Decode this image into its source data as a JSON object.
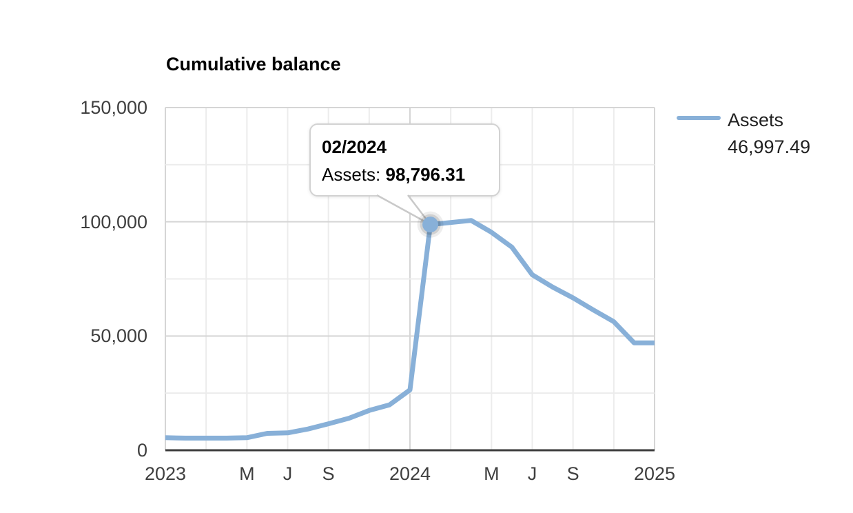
{
  "page": {
    "background": "#ffffff"
  },
  "chart_data": {
    "type": "line",
    "title": "Cumulative balance",
    "xlabel": "",
    "ylabel": "",
    "ylim": [
      0,
      150000
    ],
    "y_minor_step": 25000,
    "x_minor_step_months": 2,
    "x_range_months": 24,
    "grid": true,
    "legend_position": "right",
    "y_ticks": [
      {
        "value": 0,
        "label": "0"
      },
      {
        "value": 50000,
        "label": "50,000"
      },
      {
        "value": 100000,
        "label": "100,000"
      },
      {
        "value": 150000,
        "label": "150,000"
      }
    ],
    "x_ticks": [
      {
        "month_index": 0,
        "label": "2023"
      },
      {
        "month_index": 4,
        "label": "M"
      },
      {
        "month_index": 6,
        "label": "J"
      },
      {
        "month_index": 8,
        "label": "S"
      },
      {
        "month_index": 12,
        "label": "2024"
      },
      {
        "month_index": 16,
        "label": "M"
      },
      {
        "month_index": 18,
        "label": "J"
      },
      {
        "month_index": 20,
        "label": "S"
      },
      {
        "month_index": 24,
        "label": "2025"
      }
    ],
    "series": [
      {
        "name": "Assets",
        "color": "#88b0d8",
        "x": [
          "01/2023",
          "02/2023",
          "03/2023",
          "04/2023",
          "05/2023",
          "06/2023",
          "07/2023",
          "08/2023",
          "09/2023",
          "10/2023",
          "11/2023",
          "12/2023",
          "01/2024",
          "02/2024",
          "03/2024",
          "04/2024",
          "05/2024",
          "06/2024",
          "07/2024",
          "08/2024",
          "09/2024",
          "10/2024",
          "11/2024",
          "12/2024",
          "01/2025"
        ],
        "values": [
          5500,
          5300,
          5300,
          5300,
          5500,
          7400,
          7600,
          9300,
          11600,
          14000,
          17400,
          19900,
          26400,
          98796.31,
          99700,
          100600,
          95400,
          88900,
          76800,
          71400,
          66700,
          61400,
          56300,
          47000,
          46997.49
        ]
      }
    ],
    "highlight": {
      "x": "02/2024",
      "month_index": 13,
      "value": 98796.31
    },
    "tooltip": {
      "title": "02/2024",
      "series_label": "Assets: ",
      "value": "98,796.31"
    },
    "legend": {
      "label": "Assets",
      "value": "46,997.49",
      "swatch_color": "#88b0d8"
    }
  },
  "colors": {
    "series_line": "#88b0d8",
    "grid_major": "#d5d5d5",
    "grid_minor": "#ececec",
    "axis_line": "#3c3c3c",
    "axis_text": "#3f3f3f",
    "tooltip_border": "#c9c9c9"
  }
}
